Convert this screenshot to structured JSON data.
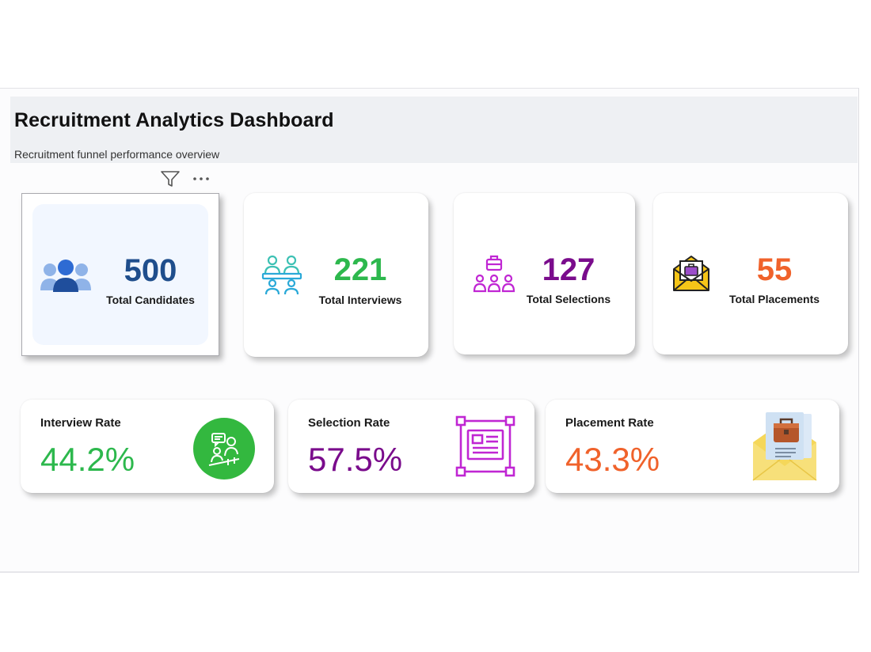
{
  "header": {
    "title": "Recruitment Analytics Dashboard",
    "subtitle": "Recruitment funnel performance overview"
  },
  "toolbar": {
    "filter_icon": "filter-icon",
    "more_icon": "more-options-icon",
    "more_label": "···"
  },
  "kpis": [
    {
      "value": "500",
      "label": "Total Candidates",
      "color": "#1f4e8c",
      "icon": "people-group-icon"
    },
    {
      "value": "221",
      "label": "Total Interviews",
      "color": "#2db84d",
      "icon": "interview-meeting-icon"
    },
    {
      "value": "127",
      "label": "Total Selections",
      "color": "#7a0c8c",
      "icon": "selection-team-icon"
    },
    {
      "value": "55",
      "label": "Total Placements",
      "color": "#f0622b",
      "icon": "offer-envelope-icon"
    }
  ],
  "rates": [
    {
      "label": "Interview Rate",
      "value": "44.2%",
      "color": "#2db84d",
      "icon": "interview-chat-icon"
    },
    {
      "label": "Selection Rate",
      "value": "57.5%",
      "color": "#7a0c8c",
      "icon": "document-frame-icon"
    },
    {
      "label": "Placement Rate",
      "value": "43.3%",
      "color": "#f0622b",
      "icon": "briefcase-envelope-icon"
    }
  ]
}
